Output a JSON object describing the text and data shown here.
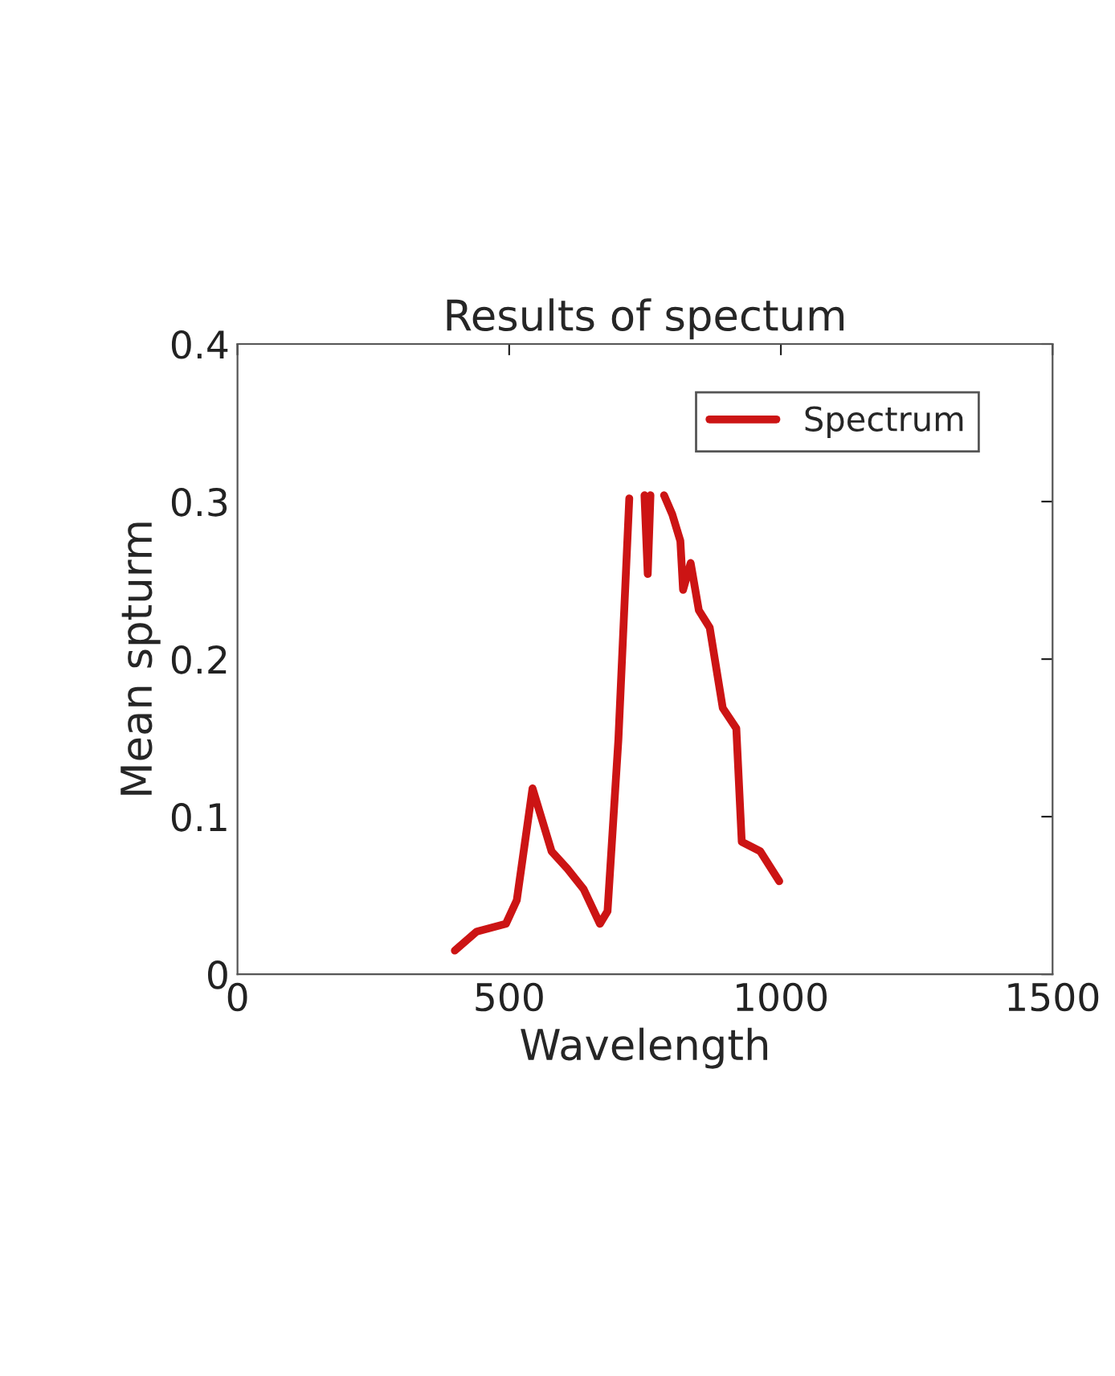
{
  "chart_data": {
    "type": "line",
    "title": "Results of spectum",
    "xlabel": "Wavelength",
    "ylabel": "Mean spturm",
    "series": [
      {
        "name": "Spectrum",
        "color": "#cc1414",
        "x": [
          400,
          440,
          494,
          514,
          543,
          578,
          607,
          637,
          667,
          681,
          701,
          721,
          738,
          749,
          755,
          760,
          772,
          785,
          800,
          815,
          820,
          834,
          849,
          869,
          893,
          918,
          928,
          962,
          997
        ],
        "values": [
          0.015,
          0.027,
          0.032,
          0.047,
          0.118,
          0.078,
          0.067,
          0.054,
          0.032,
          0.04,
          0.149,
          0.302,
          null,
          0.304,
          0.254,
          0.304,
          null,
          0.304,
          0.292,
          0.275,
          0.244,
          0.261,
          0.231,
          0.22,
          0.169,
          0.156,
          0.084,
          0.078,
          0.059
        ]
      }
    ],
    "xlim": [
      0,
      1500
    ],
    "xticks": [
      0,
      500,
      1000,
      1500
    ],
    "ylim": [
      0,
      0.4
    ],
    "yticks": [
      0,
      0.1,
      0.2,
      0.3,
      0.4
    ],
    "grid": false,
    "legend": "top right",
    "line_style": "solid",
    "marker": "none"
  }
}
